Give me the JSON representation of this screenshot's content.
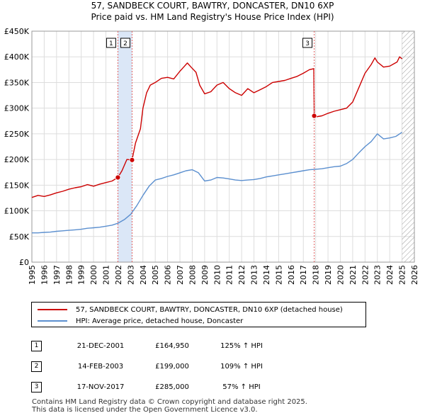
{
  "title_line1": "57, SANDBECK COURT, BAWTRY, DONCASTER, DN10 6XP",
  "title_line2": "Price paid vs. HM Land Registry's House Price Index (HPI)",
  "colors": {
    "property": "#cc0000",
    "hpi": "#5b8fcf",
    "shade": "#dbe7f7",
    "grid": "#dddddd",
    "vline": "#e06060"
  },
  "chart_data": {
    "type": "line",
    "title": "57, SANDBECK COURT, BAWTRY, DONCASTER, DN10 6XP — Price paid vs. HM Land Registry's House Price Index (HPI)",
    "xlabel": "",
    "ylabel": "",
    "xlim": [
      1995,
      2026
    ],
    "ylim": [
      0,
      450000
    ],
    "grid": true,
    "x_ticks": [
      "1995",
      "1996",
      "1997",
      "1998",
      "1999",
      "2000",
      "2001",
      "2002",
      "2003",
      "2004",
      "2005",
      "2006",
      "2007",
      "2008",
      "2009",
      "2010",
      "2011",
      "2012",
      "2013",
      "2014",
      "2015",
      "2016",
      "2017",
      "2018",
      "2019",
      "2020",
      "2021",
      "2022",
      "2023",
      "2024",
      "2025",
      "2026"
    ],
    "y_ticks": [
      {
        "value": 0,
        "label": "£0"
      },
      {
        "value": 50000,
        "label": "£50K"
      },
      {
        "value": 100000,
        "label": "£100K"
      },
      {
        "value": 150000,
        "label": "£150K"
      },
      {
        "value": 200000,
        "label": "£200K"
      },
      {
        "value": 250000,
        "label": "£250K"
      },
      {
        "value": 300000,
        "label": "£300K"
      },
      {
        "value": 350000,
        "label": "£350K"
      },
      {
        "value": 400000,
        "label": "£400K"
      },
      {
        "value": 450000,
        "label": "£450K"
      }
    ],
    "shaded_ranges": [
      [
        2001.97,
        2003.12
      ]
    ],
    "future_hatch_from": 2025.0,
    "series": [
      {
        "name": "57, SANDBECK COURT, BAWTRY, DONCASTER, DN10 6XP (detached house)",
        "color": "#cc0000",
        "x": [
          1995.0,
          1995.5,
          1996.0,
          1996.5,
          1997.0,
          1997.5,
          1998.0,
          1998.5,
          1999.0,
          1999.5,
          2000.0,
          2000.5,
          2001.0,
          2001.5,
          2001.97,
          2002.3,
          2002.7,
          2003.12,
          2003.4,
          2003.8,
          2004.0,
          2004.3,
          2004.6,
          2005.0,
          2005.5,
          2006.0,
          2006.5,
          2007.0,
          2007.3,
          2007.6,
          2007.9,
          2008.3,
          2008.6,
          2009.0,
          2009.5,
          2010.0,
          2010.5,
          2011.0,
          2011.5,
          2012.0,
          2012.5,
          2013.0,
          2013.5,
          2014.0,
          2014.5,
          2015.0,
          2015.5,
          2016.0,
          2016.5,
          2017.0,
          2017.5,
          2017.85,
          2017.88,
          2018.0,
          2018.5,
          2019.0,
          2019.5,
          2020.0,
          2020.5,
          2021.0,
          2021.5,
          2022.0,
          2022.5,
          2022.8,
          2023.0,
          2023.5,
          2024.0,
          2024.3,
          2024.6,
          2024.8,
          2025.0
        ],
        "values": [
          126000,
          130000,
          128000,
          131000,
          135000,
          138000,
          142000,
          145000,
          147000,
          151000,
          148000,
          152000,
          155000,
          158000,
          164950,
          178000,
          200000,
          199000,
          232000,
          260000,
          300000,
          330000,
          345000,
          350000,
          358000,
          360000,
          357000,
          372000,
          380000,
          388000,
          380000,
          370000,
          345000,
          328000,
          332000,
          345000,
          350000,
          338000,
          330000,
          325000,
          338000,
          330000,
          336000,
          342000,
          350000,
          352000,
          354000,
          358000,
          362000,
          368000,
          375000,
          377000,
          285000,
          283000,
          285000,
          290000,
          294000,
          297000,
          300000,
          312000,
          340000,
          368000,
          385000,
          398000,
          390000,
          380000,
          382000,
          386000,
          390000,
          400000,
          396000
        ]
      },
      {
        "name": "HPI: Average price, detached house, Doncaster",
        "color": "#5b8fcf",
        "x": [
          1995.0,
          1995.5,
          1996.0,
          1996.5,
          1997.0,
          1997.5,
          1998.0,
          1998.5,
          1999.0,
          1999.5,
          2000.0,
          2000.5,
          2001.0,
          2001.5,
          2002.0,
          2002.5,
          2003.0,
          2003.5,
          2004.0,
          2004.5,
          2005.0,
          2005.5,
          2006.0,
          2006.5,
          2007.0,
          2007.5,
          2008.0,
          2008.5,
          2009.0,
          2009.5,
          2010.0,
          2010.5,
          2011.0,
          2011.5,
          2012.0,
          2012.5,
          2013.0,
          2013.5,
          2014.0,
          2014.5,
          2015.0,
          2015.5,
          2016.0,
          2016.5,
          2017.0,
          2017.5,
          2018.0,
          2018.5,
          2019.0,
          2019.5,
          2020.0,
          2020.5,
          2021.0,
          2021.5,
          2022.0,
          2022.5,
          2023.0,
          2023.5,
          2024.0,
          2024.5,
          2025.0
        ],
        "values": [
          57000,
          57000,
          58000,
          58500,
          60000,
          61000,
          62000,
          63000,
          64000,
          66000,
          67000,
          68000,
          70000,
          72000,
          76000,
          83000,
          93000,
          110000,
          130000,
          148000,
          160000,
          163000,
          167000,
          170000,
          174000,
          178000,
          180000,
          174000,
          158000,
          160000,
          165000,
          164000,
          162000,
          160000,
          159000,
          160000,
          161000,
          163000,
          166000,
          168000,
          170000,
          172000,
          174000,
          176000,
          178000,
          180000,
          181000,
          182000,
          184000,
          186000,
          187000,
          192000,
          200000,
          213000,
          225000,
          235000,
          250000,
          240000,
          242000,
          245000,
          253000
        ]
      }
    ],
    "transaction_markers": [
      {
        "label": "1",
        "x": 2001.97,
        "value": 164950
      },
      {
        "label": "2",
        "x": 2003.12,
        "value": 199000
      },
      {
        "label": "3",
        "x": 2017.88,
        "value": 285000
      }
    ]
  },
  "legend": {
    "property_label": "57, SANDBECK COURT, BAWTRY, DONCASTER, DN10 6XP (detached house)",
    "hpi_label": "HPI: Average price, detached house, Doncaster"
  },
  "transactions": [
    {
      "num": "1",
      "date": "21-DEC-2001",
      "price": "£164,950",
      "hpi": "125% ↑ HPI"
    },
    {
      "num": "2",
      "date": "14-FEB-2003",
      "price": "£199,000",
      "hpi": "109% ↑ HPI"
    },
    {
      "num": "3",
      "date": "17-NOV-2017",
      "price": "£285,000",
      "hpi": "57% ↑ HPI"
    }
  ],
  "footer": {
    "line1": "Contains HM Land Registry data © Crown copyright and database right 2025.",
    "line2": "This data is licensed under the Open Government Licence v3.0."
  }
}
